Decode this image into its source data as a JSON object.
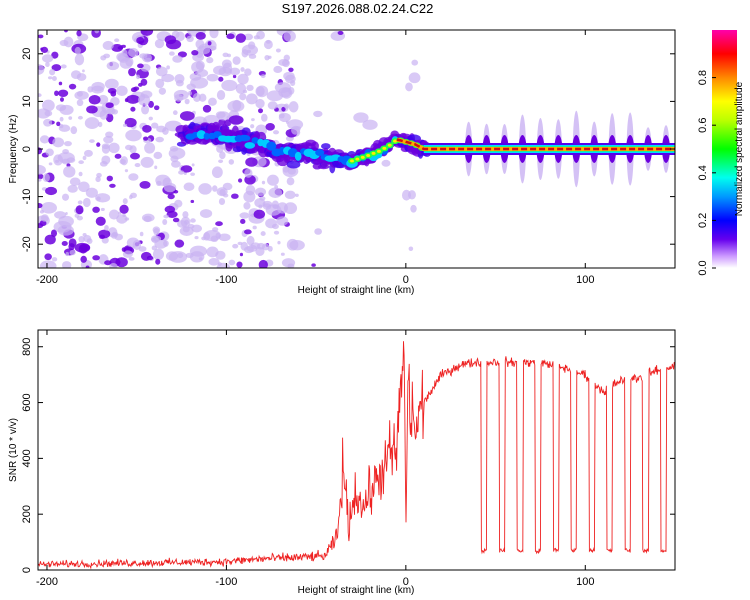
{
  "title": "S197.2026.088.02.24.C22",
  "colors": {
    "snr_line": "#ee2222",
    "ridge": "#cc1111",
    "scatter_dark": "#6b00dd",
    "scatter_light": "#c9b2f2"
  },
  "chart_data": [
    {
      "id": "spectrogram",
      "type": "heatmap",
      "xlabel": "Height of straight line (km)",
      "ylabel": "Frequency (Hz)",
      "xlim": [
        -205,
        150
      ],
      "ylim": [
        -25,
        25
      ],
      "xticks": [
        -200,
        -100,
        0,
        100
      ],
      "yticks": [
        -20,
        -10,
        0,
        10,
        20
      ],
      "ridge": [
        {
          "x": -125,
          "y": 3
        },
        {
          "x": -110,
          "y": 3
        },
        {
          "x": -100,
          "y": 2.5
        },
        {
          "x": -90,
          "y": 1.5
        },
        {
          "x": -80,
          "y": 0.5
        },
        {
          "x": -70,
          "y": -0.5
        },
        {
          "x": -55,
          "y": -1
        },
        {
          "x": -40,
          "y": -2
        },
        {
          "x": -30,
          "y": -2.5
        },
        {
          "x": -22,
          "y": -1.5
        },
        {
          "x": -15,
          "y": -0.5
        },
        {
          "x": -8,
          "y": 1
        },
        {
          "x": -5,
          "y": 2
        },
        {
          "x": 0,
          "y": 1.5
        },
        {
          "x": 5,
          "y": 1
        },
        {
          "x": 10,
          "y": 0
        },
        {
          "x": 150,
          "y": 0
        }
      ],
      "pulse_positions": [
        35,
        45,
        55,
        65,
        75,
        85,
        95,
        105,
        115,
        125,
        135,
        145
      ],
      "colorbar": {
        "label": "Normalized spectral amplitude",
        "range": [
          0,
          1
        ],
        "ticks": [
          "0.0",
          "0.2",
          "0.4",
          "0.6",
          "0.8"
        ],
        "tick_values": [
          0,
          0.2,
          0.4,
          0.6,
          0.8
        ]
      }
    },
    {
      "id": "snr",
      "type": "line",
      "xlabel": "Height of straight line (km)",
      "ylabel": "SNR (10 * v/v)",
      "xlim": [
        -205,
        150
      ],
      "ylim": [
        0,
        860
      ],
      "xticks": [
        -200,
        -100,
        0,
        100
      ],
      "yticks": [
        0,
        200,
        400,
        600,
        800
      ],
      "series": [
        {
          "name": "SNR",
          "x": [
            -205,
            -150,
            -100,
            -80,
            -60,
            -45,
            -38,
            -35,
            -32,
            -28,
            -24,
            -20,
            -15,
            -10,
            -5,
            -1,
            0,
            1,
            3,
            6,
            10,
            15,
            20,
            25,
            30,
            35,
            40,
            60,
            80,
            100,
            110,
            120,
            130,
            140,
            150
          ],
          "y": [
            20,
            25,
            30,
            40,
            45,
            50,
            120,
            380,
            160,
            290,
            220,
            280,
            330,
            400,
            430,
            820,
            90,
            700,
            540,
            520,
            600,
            650,
            700,
            715,
            735,
            740,
            745,
            745,
            740,
            700,
            640,
            680,
            690,
            715,
            730
          ]
        }
      ],
      "dropouts": {
        "positions": [
          42,
          52,
          62,
          72,
          82,
          92,
          102,
          112,
          122,
          132,
          142
        ],
        "level": 70
      }
    }
  ]
}
